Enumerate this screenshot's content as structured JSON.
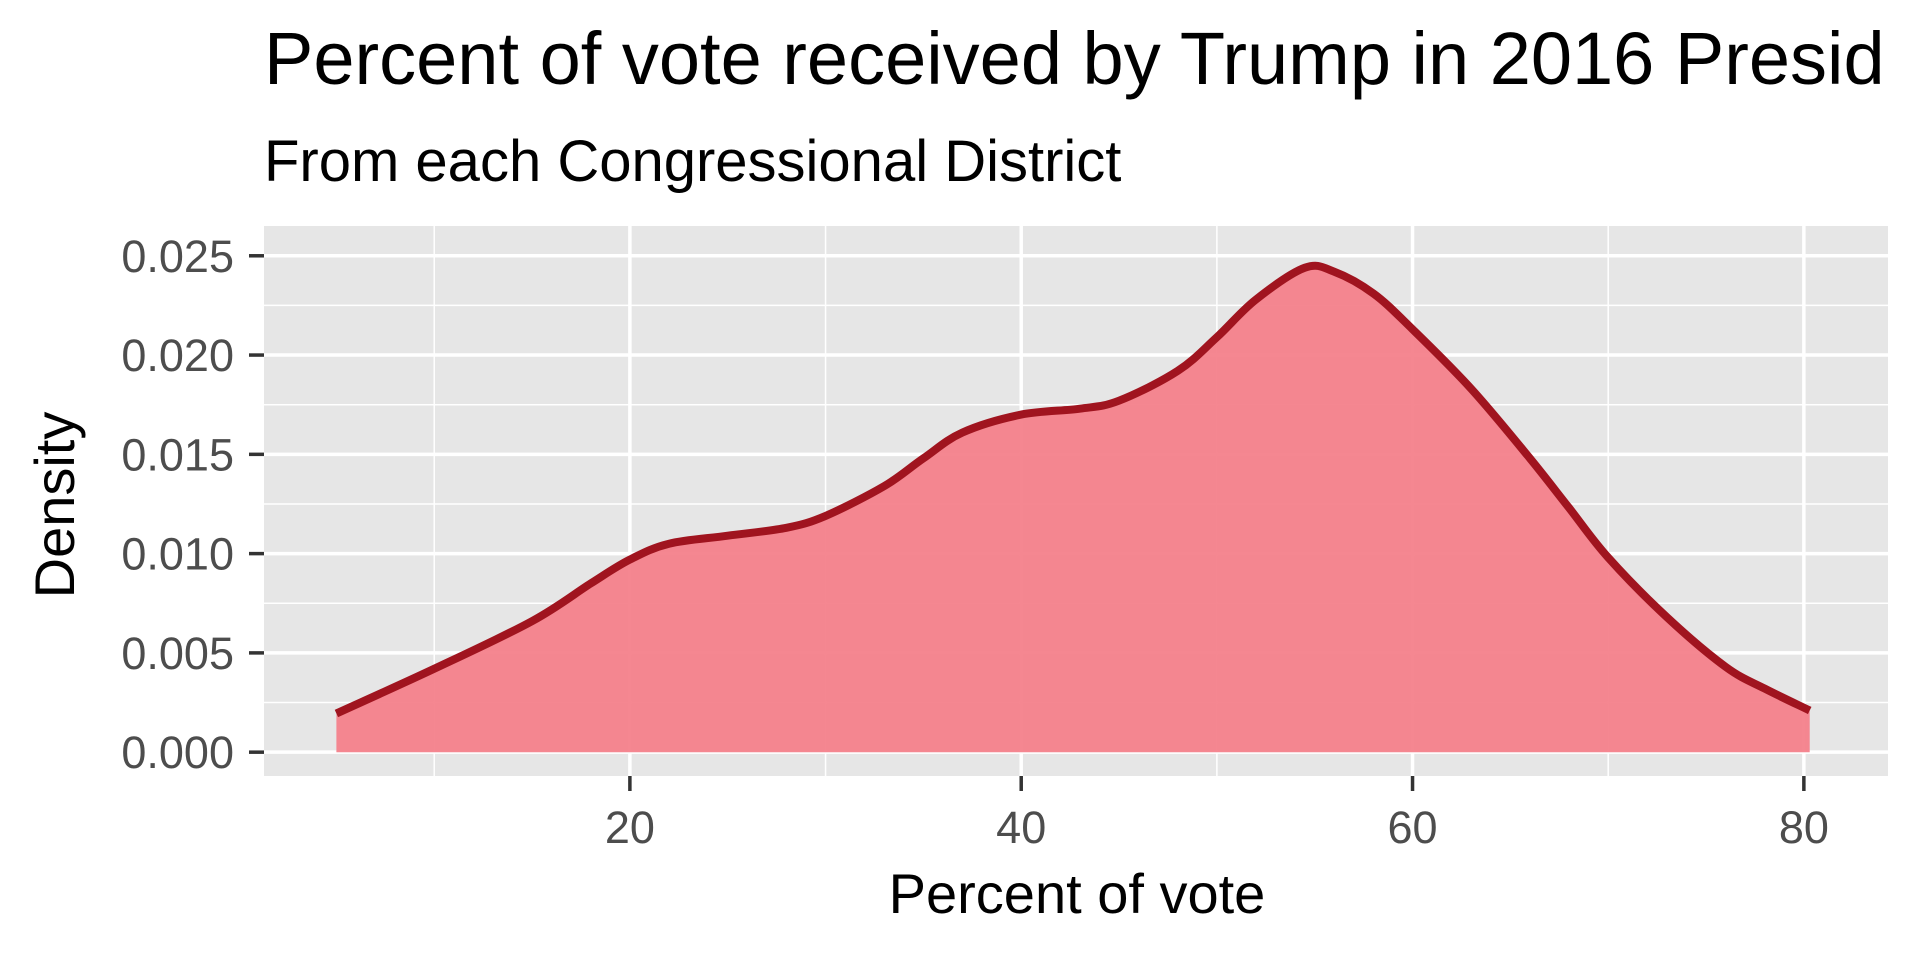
{
  "chart_data": {
    "type": "area",
    "title": "Percent of vote received by Trump in 2016 Presid",
    "subtitle": "From each Congressional District",
    "xlabel": "Percent of vote",
    "ylabel": "Density",
    "xlim": [
      1.3,
      84.3
    ],
    "ylim": [
      -0.0012,
      0.0265
    ],
    "x_ticks": [
      20,
      40,
      60,
      80
    ],
    "x_tick_labels": [
      "20",
      "40",
      "60",
      "80"
    ],
    "x_minor_ticks": [
      10,
      30,
      50,
      70
    ],
    "y_ticks": [
      0,
      0.005,
      0.01,
      0.015,
      0.02,
      0.025
    ],
    "y_tick_labels": [
      "0.000",
      "0.005",
      "0.010",
      "0.015",
      "0.020",
      "0.025"
    ],
    "y_minor_ticks": [
      0.0025,
      0.0075,
      0.0125,
      0.0175,
      0.0225
    ],
    "grid": true,
    "series": [
      {
        "x": [
          5.0,
          10.0,
          15.0,
          18.0,
          20.0,
          22.0,
          25.0,
          28.0,
          30.0,
          33.0,
          35.0,
          37.0,
          40.0,
          43.0,
          45.0,
          48.0,
          50.0,
          52.0,
          54.5,
          56.0,
          58.0,
          60.0,
          63.0,
          66.0,
          68.0,
          70.0,
          73.0,
          76.0,
          78.0,
          80.3
        ],
        "y": [
          0.00195,
          0.0042,
          0.0066,
          0.0085,
          0.0097,
          0.0105,
          0.0109,
          0.0113,
          0.0119,
          0.0134,
          0.0148,
          0.0161,
          0.017,
          0.0173,
          0.0177,
          0.0192,
          0.0209,
          0.0228,
          0.0244,
          0.0242,
          0.0231,
          0.0213,
          0.0183,
          0.0148,
          0.0123,
          0.0098,
          0.0068,
          0.0043,
          0.0032,
          0.0021
        ]
      }
    ],
    "colors": {
      "fill": "#f47e89",
      "line": "#a0141f",
      "panel": "#e6e6e6",
      "grid": "#ffffff"
    }
  }
}
